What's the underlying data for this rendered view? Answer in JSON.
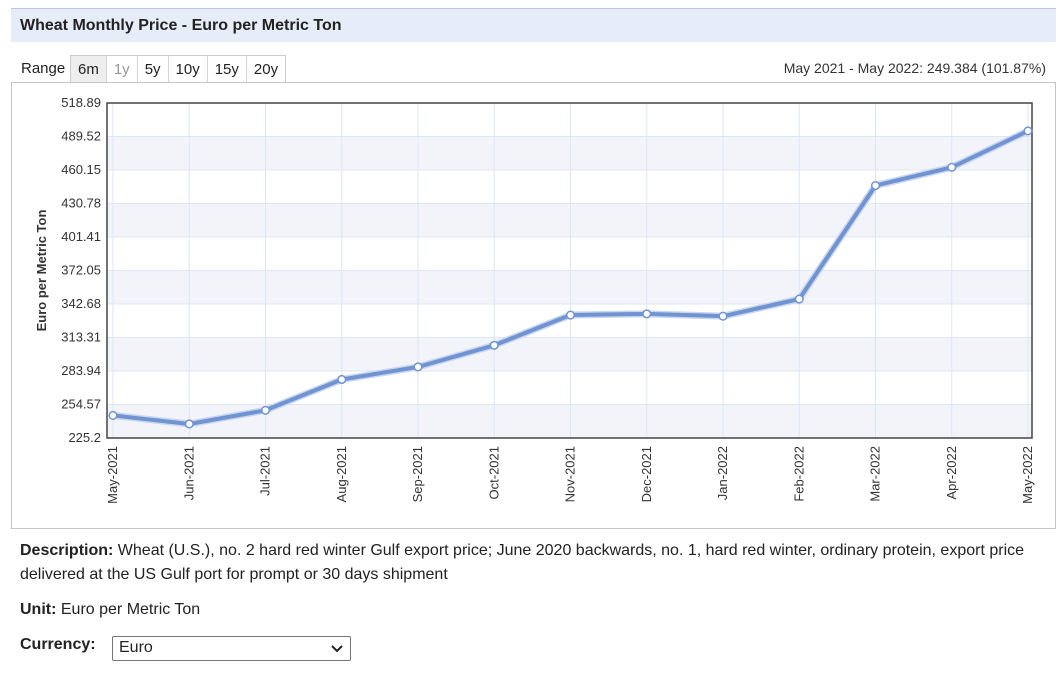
{
  "title": "Wheat Monthly Price - Euro per Metric Ton",
  "range": {
    "label": "Range",
    "buttons": [
      "6m",
      "1y",
      "5y",
      "10y",
      "15y",
      "20y"
    ],
    "active_index": 0,
    "disabled_index": 1,
    "summary": "May 2021 - May 2022: 249.384 (101.87%)"
  },
  "chart_data": {
    "type": "line",
    "title": "",
    "ylabel": "Euro per Metric Ton",
    "xlabel": "",
    "ylim": [
      225.2,
      518.89
    ],
    "yticks": [
      "518.89",
      "489.52",
      "460.15",
      "430.78",
      "401.41",
      "372.05",
      "342.68",
      "313.31",
      "283.94",
      "254.57",
      "225.2"
    ],
    "categories": [
      "May-2021",
      "Jun-2021",
      "Jul-2021",
      "Aug-2021",
      "Sep-2021",
      "Oct-2021",
      "Nov-2021",
      "Dec-2021",
      "Jan-2022",
      "Feb-2022",
      "Mar-2022",
      "Apr-2022",
      "May-2022"
    ],
    "series": [
      {
        "values": [
          245.0,
          237.5,
          249.5,
          276.5,
          287.5,
          306.5,
          333.0,
          334.0,
          332.0,
          347.0,
          446.5,
          462.5,
          494.4
        ]
      }
    ],
    "line_color": "#7093d1",
    "grid": true
  },
  "description": {
    "label": "Description:",
    "text": " Wheat (U.S.), no. 2 hard red winter Gulf export price; June 2020 backwards, no. 1, hard red winter, ordinary protein, export price delivered at the US Gulf port for prompt or 30 days shipment"
  },
  "unit": {
    "label": "Unit:",
    "text": " Euro per Metric Ton"
  },
  "currency": {
    "label": "Currency:",
    "selected": "Euro"
  }
}
